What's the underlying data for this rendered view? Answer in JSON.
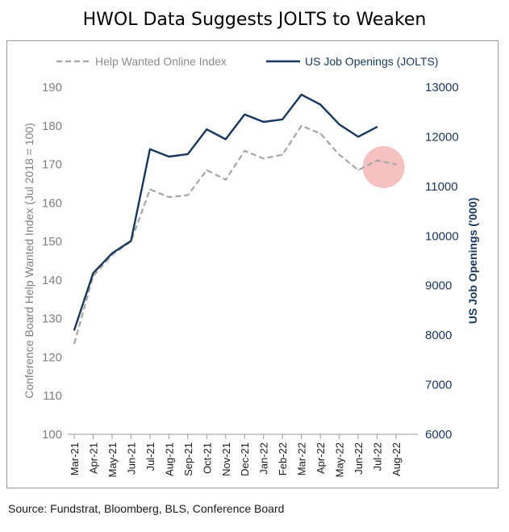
{
  "page": {
    "title": "HWOL Data Suggests JOLTS to Weaken",
    "source": "Source: Fundstrat, Bloomberg, BLS, Conference Board"
  },
  "chart_data": {
    "type": "line",
    "title": "HWOL Data Suggests JOLTS to Weaken",
    "categories": [
      "Mar-21",
      "Apr-21",
      "May-21",
      "Jun-21",
      "Jul-21",
      "Aug-21",
      "Sep-21",
      "Oct-21",
      "Nov-21",
      "Dec-21",
      "Jan-22",
      "Feb-22",
      "Mar-22",
      "Apr-22",
      "May-22",
      "Jun-22",
      "Jul-22",
      "Aug-22"
    ],
    "series": [
      {
        "name": "Help Wanted Online Index",
        "axis": "left",
        "style": "dashed",
        "color": "#a6a6a6",
        "values": [
          123.5,
          141,
          146.5,
          150,
          163.5,
          161.5,
          162,
          168.5,
          166,
          173.5,
          171.5,
          172.5,
          180,
          178,
          172.5,
          168.5,
          171,
          170
        ]
      },
      {
        "name": "US Job Openings (JOLTS)",
        "axis": "right",
        "style": "solid",
        "color": "#17375e",
        "values": [
          8100,
          9250,
          9650,
          9900,
          11750,
          11600,
          11650,
          12150,
          11950,
          12450,
          12300,
          12350,
          12850,
          12650,
          12250,
          12000,
          12200,
          null
        ]
      }
    ],
    "y_left": {
      "label": "Conference Board Help Wanted Index (Jul 2018 = 100)",
      "ylim": [
        100,
        190
      ],
      "ticks": [
        "100",
        "110",
        "120",
        "130",
        "140",
        "150",
        "160",
        "170",
        "180",
        "190"
      ]
    },
    "y_right": {
      "label": "US Job Openings ('000)",
      "ylim": [
        6000,
        13000
      ],
      "ticks": [
        "6000",
        "7000",
        "8000",
        "9000",
        "10000",
        "11000",
        "12000",
        "13000"
      ]
    },
    "annotation": {
      "type": "highlight-circle",
      "category": "Jul-22",
      "color": "#f4b6b6"
    },
    "legend": "top",
    "grid": false
  }
}
